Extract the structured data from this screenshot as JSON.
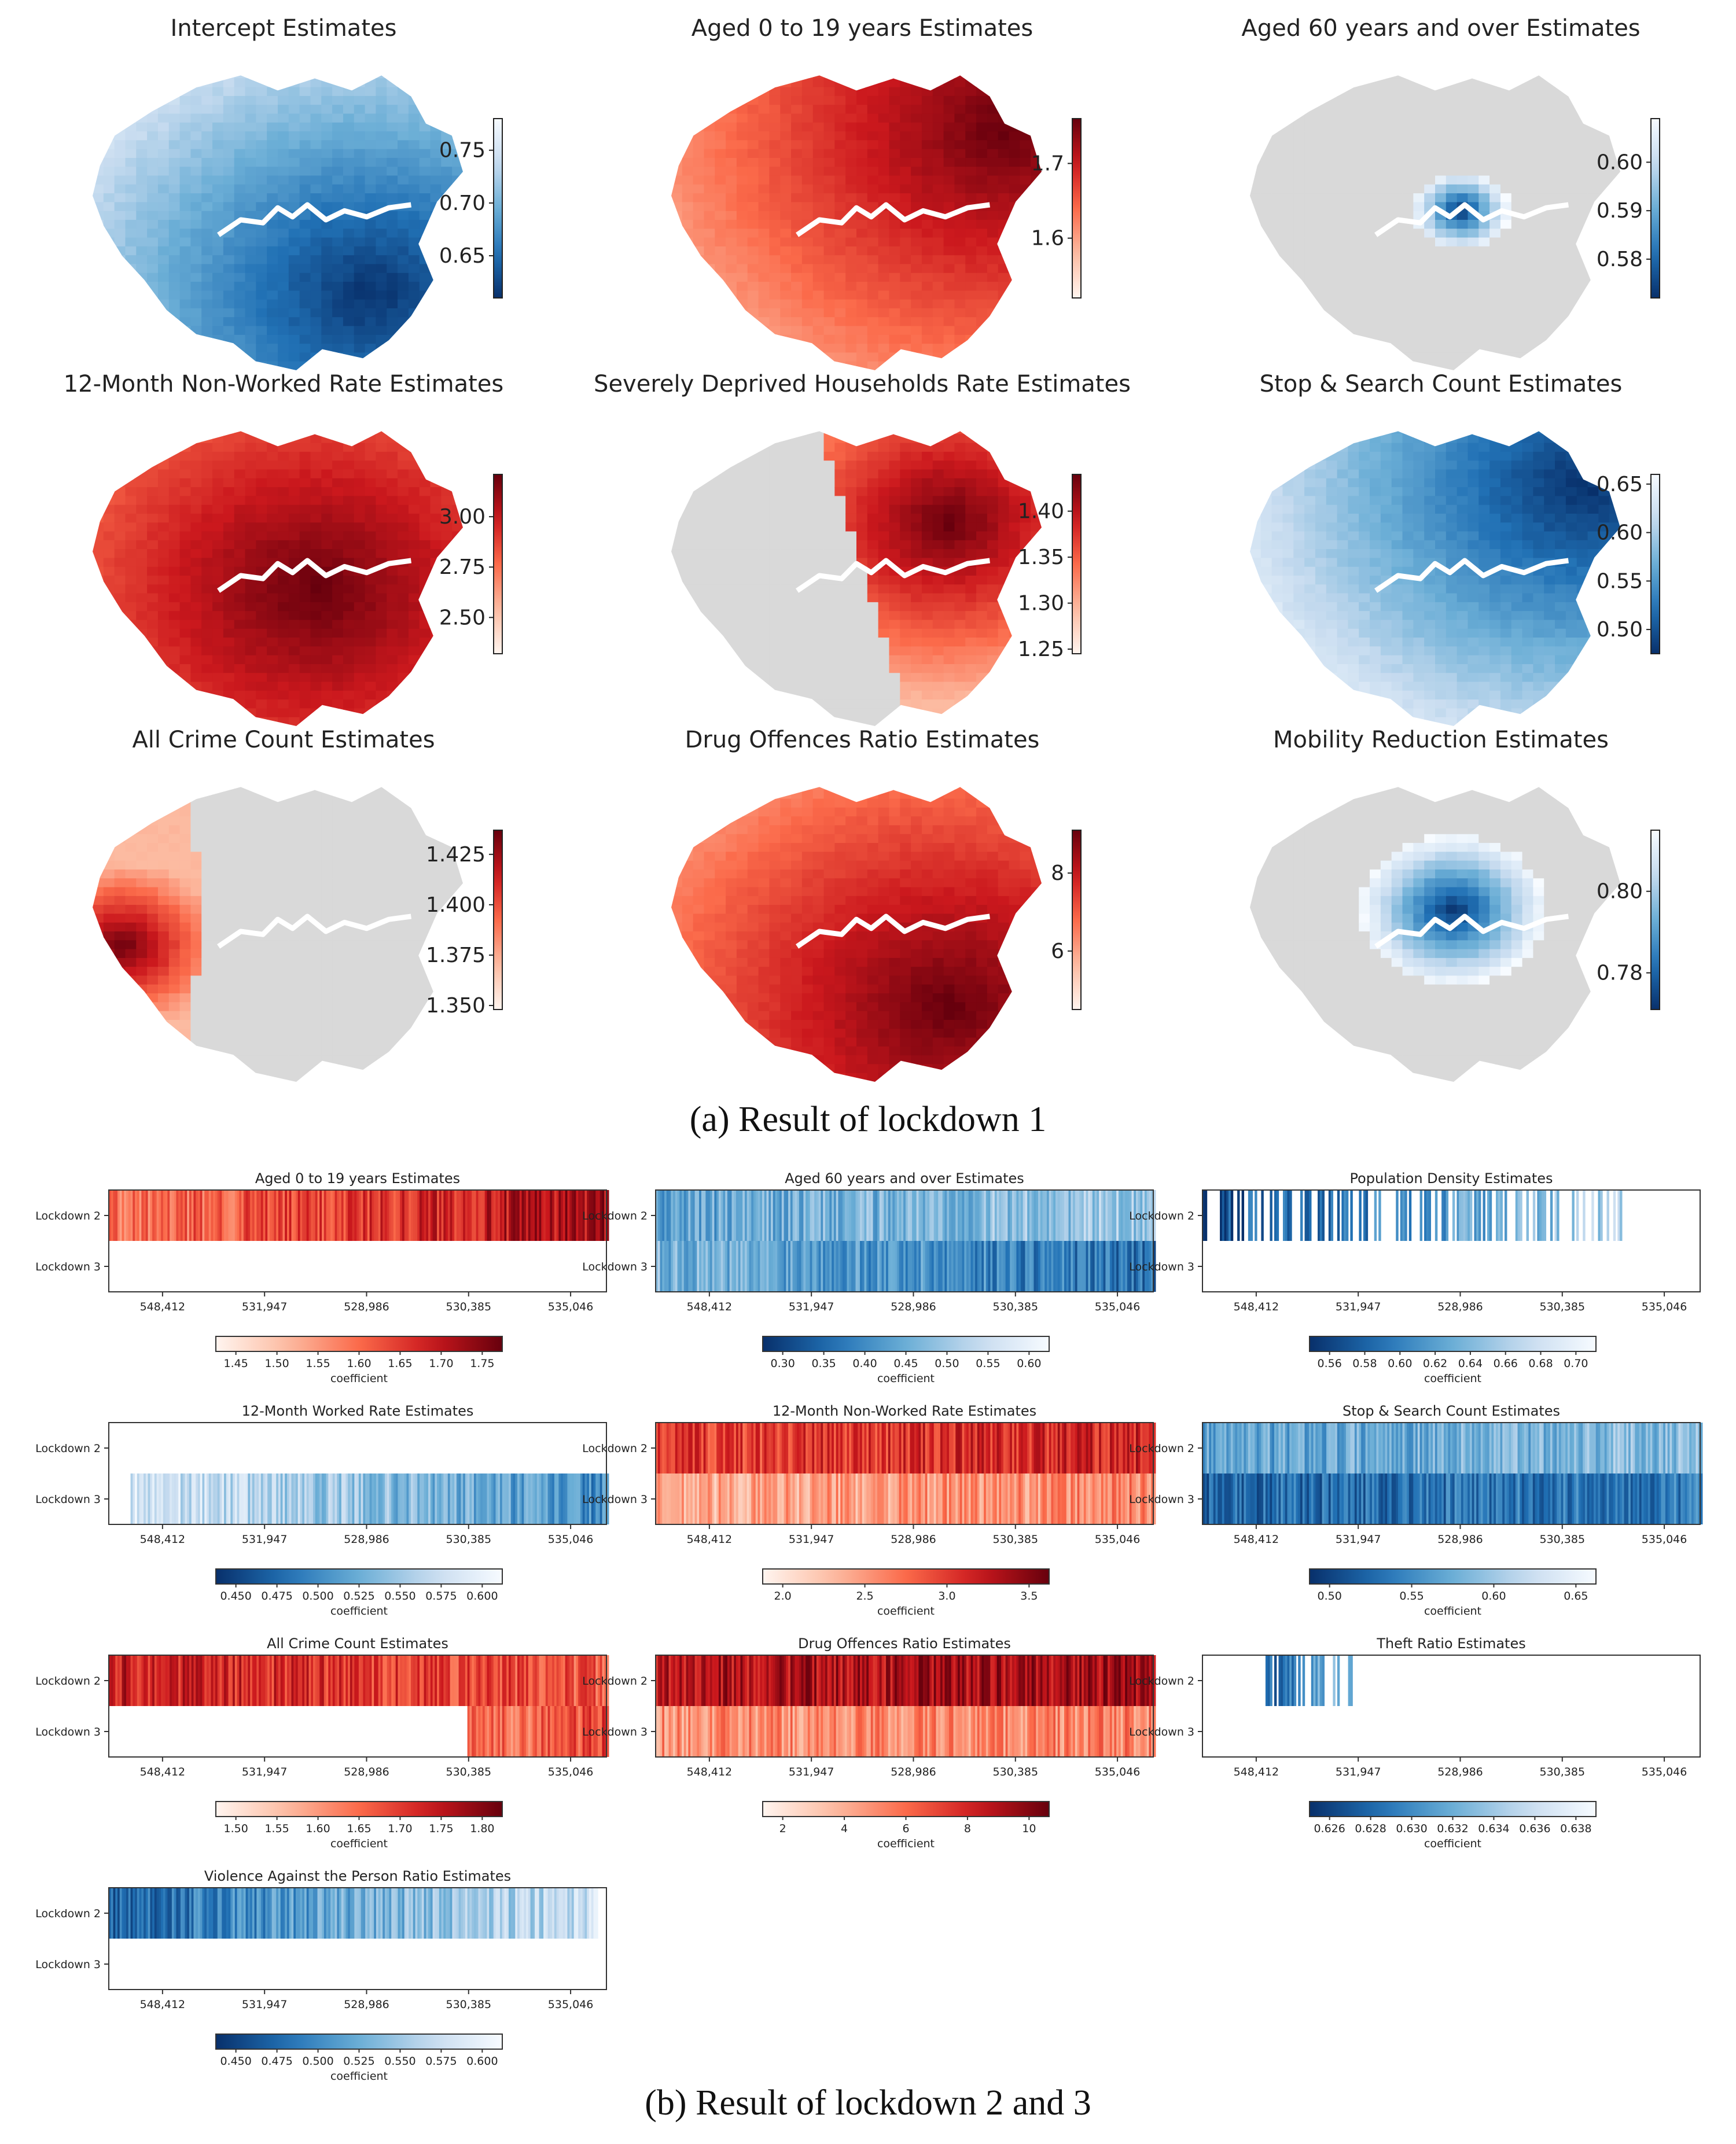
{
  "captions": {
    "a": "(a) Result of lockdown 1",
    "b": "(b) Result of lockdown 2 and 3"
  },
  "colors": {
    "reds": [
      "#fff5f0",
      "#fcbba1",
      "#fb6a4a",
      "#cb181d",
      "#67000d"
    ],
    "blues_r": [
      "#08306b",
      "#2171b5",
      "#6baed6",
      "#c6dbef",
      "#f7fbff"
    ],
    "grey": "#d9d9d9",
    "thames": "#ffffff"
  },
  "chart_data": [
    {
      "type": "heatmap",
      "panel": "map",
      "title": "Intercept Estimates",
      "cmap": "blues_r",
      "colorbar_ticks": [
        "0.75",
        "0.70",
        "0.65"
      ],
      "colorbar_range": [
        0.61,
        0.78
      ],
      "pattern": "gradient",
      "peak": "south-east"
    },
    {
      "type": "heatmap",
      "panel": "map",
      "title": "Aged 0 to 19 years Estimates",
      "cmap": "reds",
      "colorbar_ticks": [
        "1.7",
        "1.6"
      ],
      "colorbar_range": [
        1.52,
        1.76
      ],
      "pattern": "gradient",
      "peak": "north-east"
    },
    {
      "type": "heatmap",
      "panel": "map",
      "title": "Aged 60 years and over Estimates",
      "cmap": "blues_r",
      "colorbar_ticks": [
        "0.60",
        "0.59",
        "0.58"
      ],
      "colorbar_range": [
        0.572,
        0.609
      ],
      "pattern": "local",
      "region": "central"
    },
    {
      "type": "heatmap",
      "panel": "map",
      "title": "12-Month Non-Worked Rate Estimates",
      "cmap": "reds",
      "colorbar_ticks": [
        "3.00",
        "2.75",
        "2.50"
      ],
      "colorbar_range": [
        2.32,
        3.21
      ],
      "pattern": "gradient",
      "peak": "centre"
    },
    {
      "type": "heatmap",
      "panel": "map",
      "title": "Severely Deprived Households Rate Estimates",
      "cmap": "reds",
      "colorbar_ticks": [
        "1.40",
        "1.35",
        "1.30",
        "1.25"
      ],
      "colorbar_range": [
        1.245,
        1.44
      ],
      "pattern": "local",
      "region": "east"
    },
    {
      "type": "heatmap",
      "panel": "map",
      "title": "Stop & Search Count Estimates",
      "cmap": "blues_r",
      "colorbar_ticks": [
        "0.65",
        "0.60",
        "0.55",
        "0.50"
      ],
      "colorbar_range": [
        0.475,
        0.66
      ],
      "pattern": "gradient",
      "peak": "north-east"
    },
    {
      "type": "heatmap",
      "panel": "map",
      "title": "All Crime Count Estimates",
      "cmap": "reds",
      "colorbar_ticks": [
        "1.425",
        "1.400",
        "1.375",
        "1.350"
      ],
      "colorbar_range": [
        1.348,
        1.437
      ],
      "pattern": "local",
      "region": "west"
    },
    {
      "type": "heatmap",
      "panel": "map",
      "title": "Drug Offences Ratio Estimates",
      "cmap": "reds",
      "colorbar_ticks": [
        "8",
        "6"
      ],
      "colorbar_range": [
        4.5,
        9.1
      ],
      "pattern": "gradient",
      "peak": "south-east"
    },
    {
      "type": "heatmap",
      "panel": "map",
      "title": "Mobility Reduction Estimates",
      "cmap": "blues_r",
      "colorbar_ticks": [
        "0.80",
        "0.78"
      ],
      "colorbar_range": [
        0.771,
        0.815
      ],
      "pattern": "local",
      "region": "central-wide"
    },
    {
      "type": "heatmap",
      "panel": "strip",
      "title": "Aged 0 to 19 years Estimates",
      "cmap": "reds",
      "rows": [
        "Lockdown 2",
        "Lockdown 3"
      ],
      "x_ticks": [
        "548,412",
        "531,947",
        "528,986",
        "530,385",
        "535,046"
      ],
      "cb_ticks": [
        "1.45",
        "1.50",
        "1.55",
        "1.60",
        "1.65",
        "1.70",
        "1.75"
      ],
      "cb_label": "coefficient",
      "r1": {
        "coverage": [
          0.0,
          1.0
        ],
        "level": [
          0.45,
          0.85
        ],
        "trend": "up"
      },
      "r2": null
    },
    {
      "type": "heatmap",
      "panel": "strip",
      "title": "Aged 60 years and over Estimates",
      "cmap": "blues_r",
      "rows": [
        "Lockdown 2",
        "Lockdown 3"
      ],
      "x_ticks": [
        "548,412",
        "531,947",
        "528,986",
        "530,385",
        "535,046"
      ],
      "cb_ticks": [
        "0.30",
        "0.35",
        "0.40",
        "0.45",
        "0.50",
        "0.55",
        "0.60"
      ],
      "cb_label": "coefficient",
      "r1": {
        "coverage": [
          0.0,
          1.0
        ],
        "level": [
          0.45,
          0.65
        ],
        "trend": "flat"
      },
      "r2": {
        "coverage": [
          0.0,
          1.0
        ],
        "level": [
          0.55,
          0.25
        ],
        "trend": "down"
      }
    },
    {
      "type": "heatmap",
      "panel": "strip",
      "title": "Population Density Estimates",
      "cmap": "blues_r",
      "rows": [
        "Lockdown 2",
        "Lockdown 3"
      ],
      "x_ticks": [
        "548,412",
        "531,947",
        "528,986",
        "530,385",
        "535,046"
      ],
      "cb_ticks": [
        "0.56",
        "0.58",
        "0.60",
        "0.62",
        "0.64",
        "0.66",
        "0.68",
        "0.70"
      ],
      "cb_label": "coefficient",
      "r1": {
        "coverage": [
          0.0,
          0.84
        ],
        "level": [
          0.1,
          0.7
        ],
        "trend": "up",
        "sparse": true
      },
      "r2": null
    },
    {
      "type": "heatmap",
      "panel": "strip",
      "title": "12-Month Worked Rate Estimates",
      "cmap": "blues_r",
      "rows": [
        "Lockdown 2",
        "Lockdown 3"
      ],
      "x_ticks": [
        "548,412",
        "531,947",
        "528,986",
        "530,385",
        "535,046"
      ],
      "cb_ticks": [
        "0.450",
        "0.475",
        "0.500",
        "0.525",
        "0.550",
        "0.575",
        "0.600"
      ],
      "cb_label": "coefficient",
      "r1": null,
      "r2": {
        "coverage": [
          0.04,
          1.0
        ],
        "level": [
          0.85,
          0.35
        ],
        "trend": "down"
      }
    },
    {
      "type": "heatmap",
      "panel": "strip",
      "title": "12-Month Non-Worked Rate Estimates",
      "cmap": "reds",
      "rows": [
        "Lockdown 2",
        "Lockdown 3"
      ],
      "x_ticks": [
        "548,412",
        "531,947",
        "528,986",
        "530,385",
        "535,046"
      ],
      "cb_ticks": [
        "2.0",
        "2.5",
        "3.0",
        "3.5"
      ],
      "cb_label": "coefficient",
      "r1": {
        "coverage": [
          0.0,
          1.0
        ],
        "level": [
          0.62,
          0.72
        ],
        "trend": "flat"
      },
      "r2": {
        "coverage": [
          0.0,
          1.0
        ],
        "level": [
          0.28,
          0.42
        ],
        "trend": "flat"
      }
    },
    {
      "type": "heatmap",
      "panel": "strip",
      "title": "Stop & Search Count Estimates",
      "cmap": "blues_r",
      "rows": [
        "Lockdown 2",
        "Lockdown 3"
      ],
      "x_ticks": [
        "548,412",
        "531,947",
        "528,986",
        "530,385",
        "535,046"
      ],
      "cb_ticks": [
        "0.50",
        "0.55",
        "0.60",
        "0.65"
      ],
      "cb_label": "coefficient",
      "r1": {
        "coverage": [
          0.0,
          1.0
        ],
        "level": [
          0.45,
          0.6
        ],
        "trend": "flat"
      },
      "r2": {
        "coverage": [
          0.0,
          1.0
        ],
        "level": [
          0.22,
          0.3
        ],
        "trend": "flat"
      }
    },
    {
      "type": "heatmap",
      "panel": "strip",
      "title": "All Crime Count Estimates",
      "cmap": "reds",
      "rows": [
        "Lockdown 2",
        "Lockdown 3"
      ],
      "x_ticks": [
        "548,412",
        "531,947",
        "528,986",
        "530,385",
        "535,046"
      ],
      "cb_ticks": [
        "1.50",
        "1.55",
        "1.60",
        "1.65",
        "1.70",
        "1.75",
        "1.80"
      ],
      "cb_label": "coefficient",
      "r1": {
        "coverage": [
          0.0,
          1.0
        ],
        "level": [
          0.75,
          0.55
        ],
        "trend": "down"
      },
      "r2": {
        "coverage": [
          0.72,
          1.0
        ],
        "level": [
          0.45,
          0.6
        ],
        "trend": "flat"
      }
    },
    {
      "type": "heatmap",
      "panel": "strip",
      "title": "Drug Offences Ratio Estimates",
      "cmap": "reds",
      "rows": [
        "Lockdown 2",
        "Lockdown 3"
      ],
      "x_ticks": [
        "548,412",
        "531,947",
        "528,986",
        "530,385",
        "535,046"
      ],
      "cb_ticks": [
        "2",
        "4",
        "6",
        "8",
        "10"
      ],
      "cb_label": "coefficient",
      "r1": {
        "coverage": [
          0.0,
          1.0
        ],
        "level": [
          0.8,
          0.85
        ],
        "trend": "flat"
      },
      "r2": {
        "coverage": [
          0.0,
          1.0
        ],
        "level": [
          0.38,
          0.42
        ],
        "trend": "flat"
      }
    },
    {
      "type": "heatmap",
      "panel": "strip",
      "title": "Theft Ratio Estimates",
      "cmap": "blues_r",
      "rows": [
        "Lockdown 2",
        "Lockdown 3"
      ],
      "x_ticks": [
        "548,412",
        "531,947",
        "528,986",
        "530,385",
        "535,046"
      ],
      "cb_ticks": [
        "0.626",
        "0.628",
        "0.630",
        "0.632",
        "0.634",
        "0.636",
        "0.638"
      ],
      "cb_label": "coefficient",
      "r1": {
        "coverage": [
          0.12,
          0.31
        ],
        "level": [
          0.2,
          0.6
        ],
        "trend": "up",
        "sparse": true
      },
      "r2": null
    },
    {
      "type": "heatmap",
      "panel": "strip",
      "title": "Violence Against the Person Ratio Estimates",
      "cmap": "blues_r",
      "rows": [
        "Lockdown 2",
        "Lockdown 3"
      ],
      "x_ticks": [
        "548,412",
        "531,947",
        "528,986",
        "530,385",
        "535,046"
      ],
      "cb_ticks": [
        "0.450",
        "0.475",
        "0.500",
        "0.525",
        "0.550",
        "0.575",
        "0.600"
      ],
      "cb_label": "coefficient",
      "r1": {
        "coverage": [
          0.0,
          0.98
        ],
        "level": [
          0.2,
          0.8
        ],
        "trend": "up"
      },
      "r2": null
    }
  ]
}
